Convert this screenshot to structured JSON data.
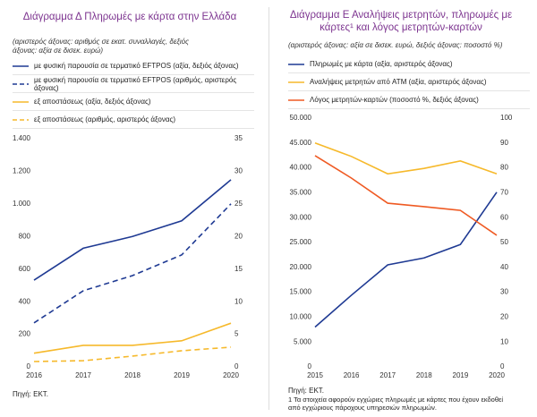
{
  "chart_data": [
    {
      "type": "line",
      "title": "Διάγραμμα Δ Πληρωμές με κάρτα στην Ελλάδα",
      "subtitle": "(αριστερός άξονας: αριθμός σε εκατ. συναλλαγές, δεξιός άξονας: αξία σε δισεκ. ευρώ)",
      "x": [
        2016,
        2017,
        2018,
        2019,
        2020
      ],
      "xlim": [
        2016,
        2020
      ],
      "xticks": [
        2016,
        2017,
        2018,
        2019,
        2020
      ],
      "ylim": [
        0,
        1400
      ],
      "yticks": [
        0,
        200,
        400,
        600,
        800,
        {
          "value": 1000,
          "label": "1.000"
        },
        {
          "value": 1200,
          "label": "1.200"
        },
        {
          "value": 1400,
          "label": "1.400"
        }
      ],
      "y2lim": [
        0,
        35
      ],
      "y2ticks": [
        0,
        5,
        10,
        15,
        20,
        25,
        30,
        35
      ],
      "series": [
        {
          "name": "με φυσική παρουσία σε τερματικό EFTPOS (αξία, δεξιός άξονας)",
          "color": "#1f3a93",
          "line_style": "solid",
          "axis": "y2",
          "values": [
            13.3,
            18.2,
            20.0,
            22.4,
            28.7
          ]
        },
        {
          "name": "με φυσική παρουσία σε τερματικό EFTPOS (αριθμός, αριστερός άξονας)",
          "color": "#1f3a93",
          "line_style": "dashed",
          "values": [
            270,
            467,
            560,
            687,
            1000
          ]
        },
        {
          "name": "εξ αποστάσεως (αξία, δεξιός άξονας)",
          "color": "#f6b92b",
          "line_style": "solid",
          "axis": "y2",
          "values": [
            2.1,
            3.3,
            3.3,
            4.0,
            6.7
          ]
        },
        {
          "name": "εξ αποστάσεως (αριθμός, αριστερός άξονας)",
          "color": "#f6b92b",
          "line_style": "dashed",
          "values": [
            33,
            38,
            66,
            99,
            121
          ]
        }
      ],
      "source": "Πηγή: ΕΚΤ."
    },
    {
      "type": "line",
      "title": "Διάγραμμα Ε Αναλήψεις μετρητών, πληρωμές με κάρτες¹ και λόγος μετρητών-καρτών",
      "subtitle": "(αριστερός άξονας: αξία σε δισεκ. ευρώ, δεξιός άξονας: ποσοστό %)",
      "x": [
        2015,
        2016,
        2017,
        2018,
        2019,
        2020
      ],
      "xlim": [
        2015,
        2020
      ],
      "xticks": [
        2015,
        2016,
        2017,
        2018,
        2019,
        2020
      ],
      "ylim": [
        0,
        50000
      ],
      "yticks": [
        0,
        {
          "value": 5000,
          "label": "5.000"
        },
        {
          "value": 10000,
          "label": "10.000"
        },
        {
          "value": 15000,
          "label": "15.000"
        },
        {
          "value": 20000,
          "label": "20.000"
        },
        {
          "value": 25000,
          "label": "25.000"
        },
        {
          "value": 30000,
          "label": "30.000"
        },
        {
          "value": 35000,
          "label": "35.000"
        },
        {
          "value": 40000,
          "label": "40.000"
        },
        {
          "value": 45000,
          "label": "45.000"
        },
        {
          "value": 50000,
          "label": "50.000"
        }
      ],
      "y2lim": [
        0,
        100
      ],
      "y2ticks": [
        0,
        10,
        20,
        30,
        40,
        50,
        60,
        70,
        80,
        90,
        100
      ],
      "series": [
        {
          "name": "Πληρωμές με κάρτα (αξία, αριστερός άξονας)",
          "color": "#1f3a93",
          "line_style": "solid",
          "values": [
            8000,
            14400,
            20500,
            21900,
            24600,
            35100
          ]
        },
        {
          "name": "Αναλήψεις μετρητών από ATM (αξία, αριστερός άξονας)",
          "color": "#f6b92b",
          "line_style": "solid",
          "values": [
            45000,
            42300,
            38800,
            39900,
            41400,
            38800
          ]
        },
        {
          "name": "Λόγος μετρητών-καρτών (ποσοστό %, δεξιός άξονας)",
          "color": "#ef5a23",
          "line_style": "solid",
          "axis": "y2",
          "values": [
            84.9,
            75.9,
            65.8,
            64.4,
            62.9,
            52.9
          ]
        }
      ],
      "source": "Πηγή: ΕΚΤ.",
      "note": "1 Τα στοιχεία αφορούν εγχώριες πληρωμές με κάρτες που έχουν εκδοθεί από εγχώριους πάροχους υπηρεσιών πληρωμών."
    }
  ]
}
